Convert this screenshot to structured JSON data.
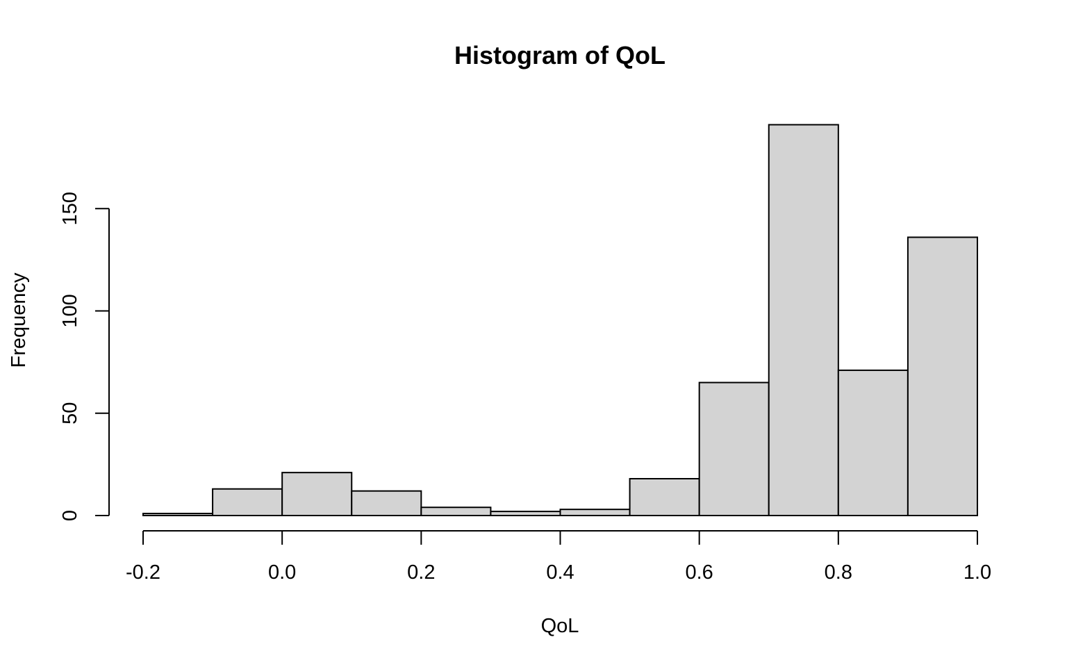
{
  "chart_data": {
    "type": "bar",
    "title": "Histogram of QoL",
    "xlabel": "QoL",
    "ylabel": "Frequency",
    "bins": [
      {
        "start": -0.2,
        "end": -0.1,
        "count": 1
      },
      {
        "start": -0.1,
        "end": 0.0,
        "count": 13
      },
      {
        "start": 0.0,
        "end": 0.1,
        "count": 21
      },
      {
        "start": 0.1,
        "end": 0.2,
        "count": 12
      },
      {
        "start": 0.2,
        "end": 0.3,
        "count": 4
      },
      {
        "start": 0.3,
        "end": 0.4,
        "count": 2
      },
      {
        "start": 0.4,
        "end": 0.5,
        "count": 3
      },
      {
        "start": 0.5,
        "end": 0.6,
        "count": 18
      },
      {
        "start": 0.6,
        "end": 0.7,
        "count": 65
      },
      {
        "start": 0.7,
        "end": 0.8,
        "count": 191
      },
      {
        "start": 0.8,
        "end": 0.9,
        "count": 71
      },
      {
        "start": 0.9,
        "end": 1.0,
        "count": 136
      }
    ],
    "xlim": [
      -0.2,
      1.0
    ],
    "ylim": [
      0,
      191
    ],
    "x_ticks": [
      -0.2,
      0.0,
      0.2,
      0.4,
      0.6,
      0.8,
      1.0
    ],
    "x_tick_labels": [
      "-0.2",
      "0.0",
      "0.2",
      "0.4",
      "0.6",
      "0.8",
      "1.0"
    ],
    "y_ticks": [
      0,
      50,
      100,
      150
    ],
    "y_tick_labels": [
      "0",
      "50",
      "100",
      "150"
    ],
    "bar_color": "#d3d3d3",
    "grid": false,
    "legend": "none"
  }
}
